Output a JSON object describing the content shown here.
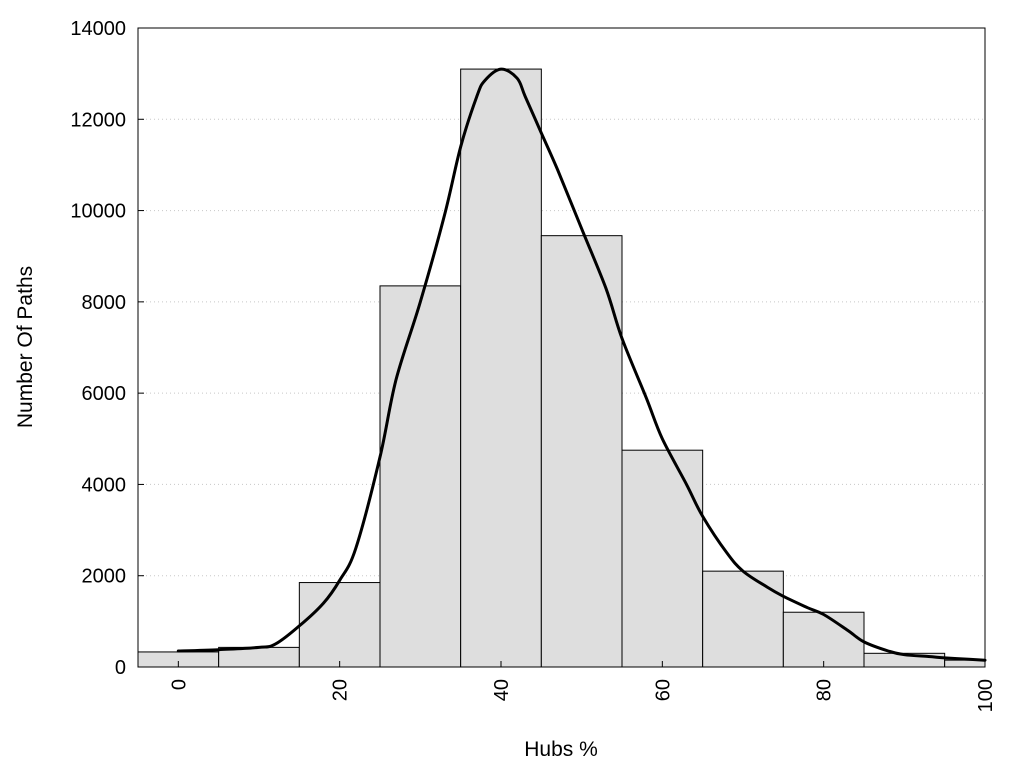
{
  "chart_data": {
    "type": "bar",
    "title": "",
    "xlabel": "Hubs %",
    "ylabel": "Number Of Paths",
    "xlim": [
      -5,
      100
    ],
    "ylim": [
      0,
      14000
    ],
    "x_ticks": [
      "0",
      "20",
      "40",
      "60",
      "80",
      "100"
    ],
    "y_ticks": [
      "0",
      "2000",
      "4000",
      "6000",
      "8000",
      "10000",
      "12000",
      "14000"
    ],
    "grid": "horizontal-dotted",
    "legend": "none",
    "bin_width": 10,
    "categories": [
      0,
      10,
      20,
      30,
      40,
      50,
      60,
      70,
      80,
      90,
      100
    ],
    "values": [
      330,
      430,
      1850,
      8350,
      13100,
      9450,
      4750,
      2100,
      1200,
      300,
      150
    ],
    "density_curve": {
      "x": [
        0,
        5,
        10,
        12,
        15,
        18,
        20,
        22,
        25,
        27,
        30,
        33,
        35,
        37,
        38,
        40,
        42,
        43,
        45,
        47,
        50,
        53,
        55,
        58,
        60,
        63,
        65,
        68,
        70,
        73,
        75,
        78,
        80,
        83,
        85,
        88,
        90,
        93,
        95,
        98,
        100
      ],
      "y": [
        350,
        380,
        430,
        500,
        900,
        1400,
        1900,
        2600,
        4600,
        6300,
        8000,
        9900,
        11400,
        12500,
        12850,
        13100,
        12900,
        12500,
        11700,
        10900,
        9600,
        8300,
        7200,
        5900,
        5000,
        4000,
        3300,
        2500,
        2100,
        1750,
        1550,
        1300,
        1150,
        800,
        550,
        350,
        270,
        230,
        200,
        170,
        150
      ]
    },
    "colors": {
      "bar_fill": "#dedede",
      "bar_stroke": "#000000",
      "curve": "#000000",
      "grid": "#c8c8c8"
    }
  }
}
